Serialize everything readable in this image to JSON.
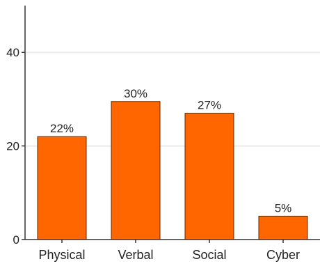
{
  "chart_data": {
    "type": "bar",
    "categories": [
      "Physical",
      "Verbal",
      "Social",
      "Cyber"
    ],
    "values": [
      22,
      29.5,
      27,
      5
    ],
    "data_labels": [
      "22%",
      "30%",
      "27%",
      "5%"
    ],
    "y_ticks": [
      "0",
      "20",
      "40"
    ],
    "y_tick_values": [
      0,
      20,
      40
    ],
    "ylim": [
      0,
      50
    ],
    "grid": true,
    "colors": {
      "bar_fill": "#ff6600",
      "bar_stroke": "#5a2a00",
      "grid": "#ebebeb",
      "axis": "#333333"
    }
  }
}
